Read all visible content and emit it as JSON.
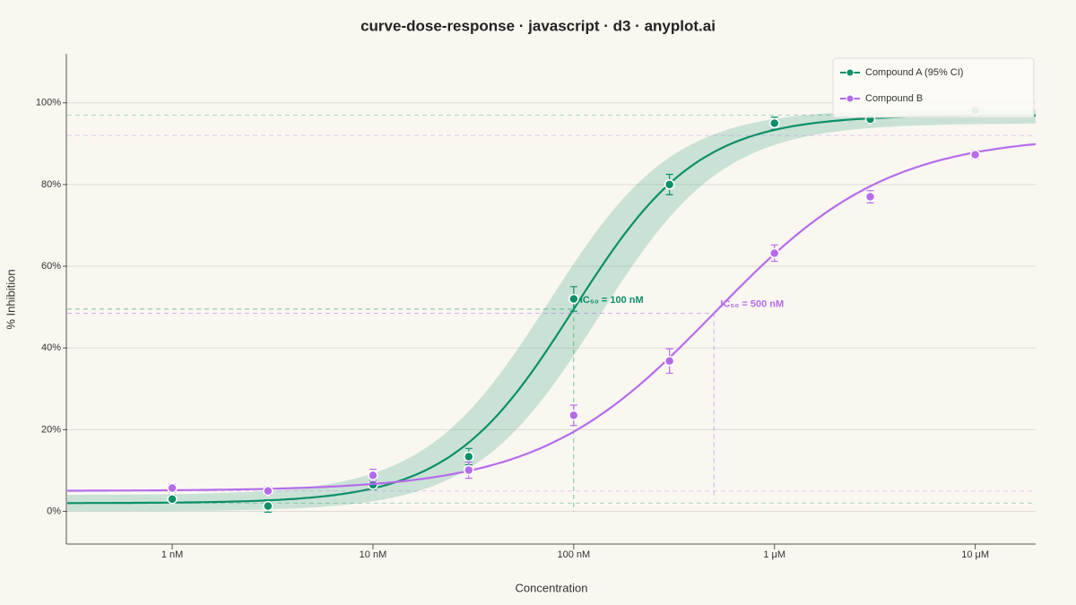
{
  "chart_data": {
    "type": "dose-response",
    "title": "curve-dose-response · javascript · d3 · anyplot.ai",
    "x_label": "Concentration",
    "y_label": "% Inhibition",
    "x_scale": "log",
    "grid": true,
    "legend": "top-right",
    "xlim": [
      0.3,
      20000
    ],
    "ylim": [
      -8,
      112
    ],
    "xticks": [
      {
        "value": 1,
        "label": "1 nM"
      },
      {
        "value": 10,
        "label": "10 nM"
      },
      {
        "value": 100,
        "label": "100 nM"
      },
      {
        "value": 1000,
        "label": "1 μM"
      },
      {
        "value": 10000,
        "label": "10 μM"
      }
    ],
    "yticks": [
      {
        "value": 0,
        "label": "0%"
      },
      {
        "value": 20,
        "label": "20%"
      },
      {
        "value": 40,
        "label": "40%"
      },
      {
        "value": 60,
        "label": "60%"
      },
      {
        "value": 80,
        "label": "80%"
      },
      {
        "value": 100,
        "label": "100%"
      }
    ],
    "x": [
      1,
      3,
      10,
      30,
      100,
      300,
      1000,
      3000,
      10000
    ],
    "series": [
      {
        "name": "Compound A (95% CI)",
        "color": "#0b8f68",
        "values": [
          3,
          1.3,
          6.5,
          13.4,
          52,
          80,
          95,
          96,
          98
        ],
        "errors": [
          1,
          1.5,
          1.2,
          2,
          3,
          2.5,
          1.5,
          1,
          1
        ],
        "fit": {
          "bottom": 2,
          "top": 97,
          "ic50": 100,
          "hill": 1.4
        },
        "ci_lower": {
          "bottom": 0,
          "top": 95,
          "ic50": 133,
          "hill": 1.4
        },
        "ci_upper": {
          "bottom": 4,
          "top": 98.5,
          "ic50": 75,
          "hill": 1.4
        },
        "annotation": "IC₅₀ = 100 nM"
      },
      {
        "name": "Compound B",
        "color": "#b56ceb",
        "values": [
          5.7,
          5,
          8.8,
          10.1,
          23.5,
          36.8,
          63.2,
          77,
          87.3
        ],
        "errors": [
          1,
          1,
          1.5,
          2,
          2.5,
          3,
          2,
          1.5,
          1
        ],
        "fit": {
          "bottom": 5,
          "top": 92,
          "ic50": 500,
          "hill": 1
        },
        "annotation": "IC₅₀ = 500 nM"
      }
    ]
  }
}
